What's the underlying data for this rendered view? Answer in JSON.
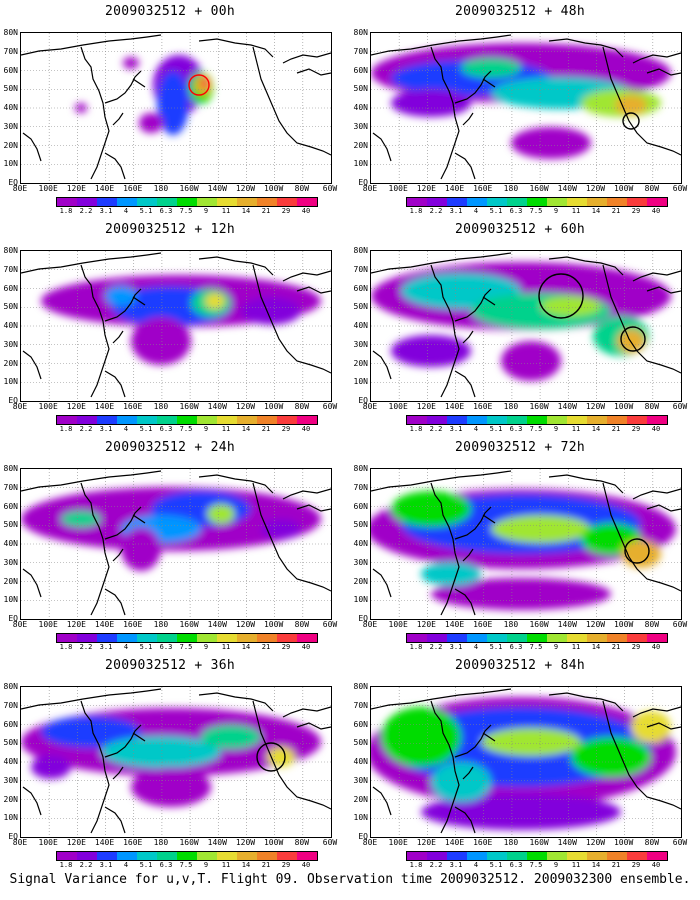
{
  "colorbar": {
    "labels": [
      "1.8",
      "2.2",
      "3.1",
      "4",
      "5.1",
      "6.3",
      "7.5",
      "9",
      "11",
      "14",
      "21",
      "29",
      "40"
    ],
    "colors": [
      "#a000c8",
      "#8200dc",
      "#1e3cff",
      "#0096ff",
      "#00c8c8",
      "#00d28c",
      "#00dc00",
      "#a0e632",
      "#e6dc32",
      "#e6af2d",
      "#f08228",
      "#fa3c3c",
      "#f00082"
    ]
  },
  "axes": {
    "lat_labels": [
      "80N",
      "70N",
      "60N",
      "50N",
      "40N",
      "30N",
      "20N",
      "10N",
      "EQ"
    ],
    "lon_labels": [
      "80E",
      "100E",
      "120E",
      "140E",
      "160E",
      "180",
      "160W",
      "140W",
      "120W",
      "100W",
      "80W",
      "60W"
    ]
  },
  "panels": [
    {
      "title": "2009032512 + 00h",
      "lead_hours": 0
    },
    {
      "title": "2009032512 + 48h",
      "lead_hours": 48
    },
    {
      "title": "2009032512 + 12h",
      "lead_hours": 12
    },
    {
      "title": "2009032512 + 60h",
      "lead_hours": 60
    },
    {
      "title": "2009032512 + 24h",
      "lead_hours": 24
    },
    {
      "title": "2009032512 + 72h",
      "lead_hours": 72
    },
    {
      "title": "2009032512 + 36h",
      "lead_hours": 36
    },
    {
      "title": "2009032512 + 84h",
      "lead_hours": 84
    }
  ],
  "footer": "Signal Variance for u,v,T. Flight 09. Observation time 2009032512. 2009032300 ensemble."
}
